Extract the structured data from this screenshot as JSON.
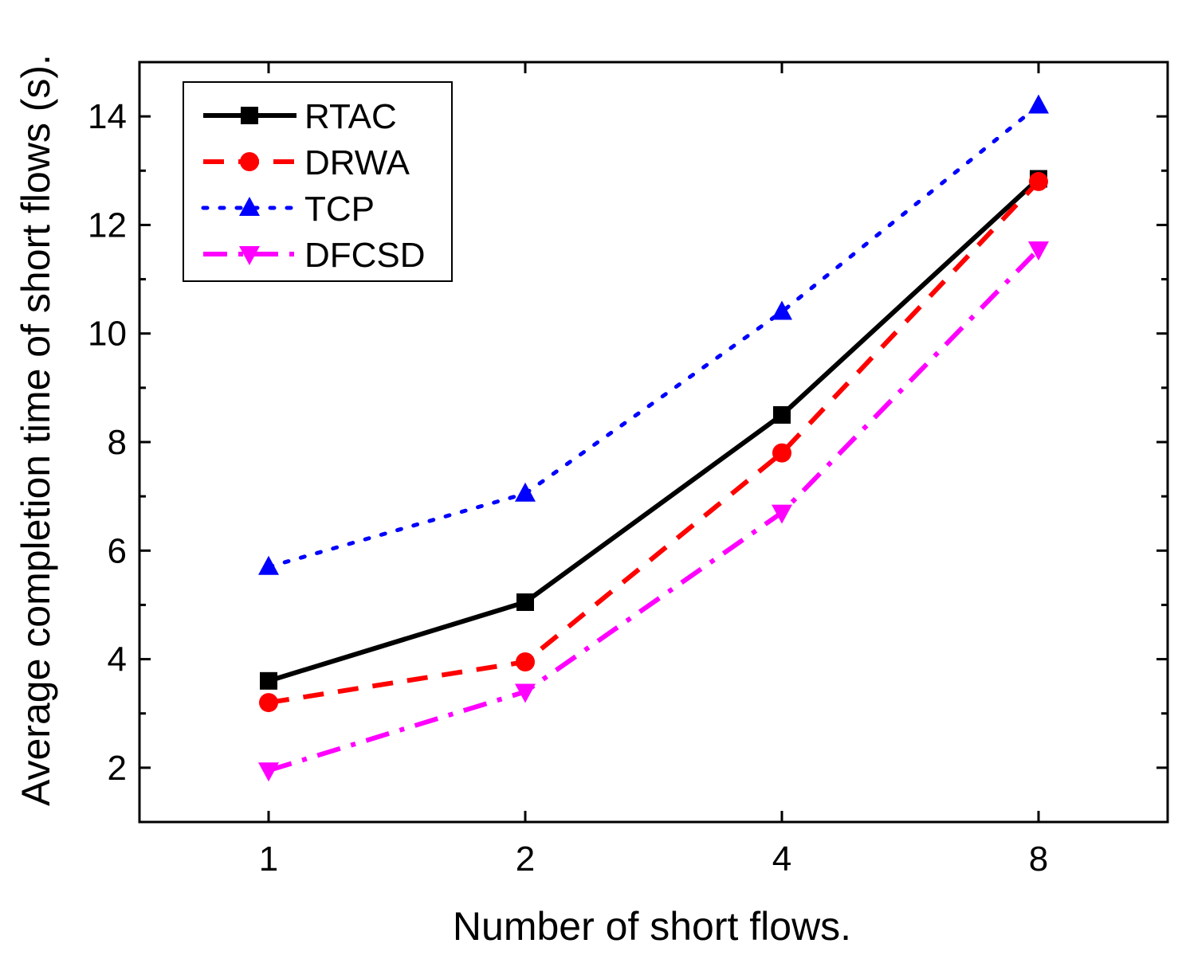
{
  "chart_data": {
    "type": "line",
    "title": "",
    "xlabel": "Number of short flows.",
    "ylabel": "Average completion time of short flows (s).",
    "categories": [
      "1",
      "2",
      "4",
      "8"
    ],
    "ylim": [
      1,
      15
    ],
    "yticks": [
      2,
      4,
      6,
      8,
      10,
      12,
      14
    ],
    "grid": false,
    "legend_position": "top-left",
    "series": [
      {
        "name": "RTAC",
        "values": [
          3.6,
          5.05,
          8.5,
          12.85
        ],
        "color": "#000000",
        "dash": "solid",
        "marker": "square"
      },
      {
        "name": "DRWA",
        "values": [
          3.2,
          3.95,
          7.8,
          12.8
        ],
        "color": "#ff0000",
        "dash": "dash",
        "marker": "circle"
      },
      {
        "name": "TCP",
        "values": [
          5.7,
          7.05,
          10.4,
          14.2
        ],
        "color": "#0000ff",
        "dash": "dot",
        "marker": "triangle-up"
      },
      {
        "name": "DFCSD",
        "values": [
          1.95,
          3.4,
          6.7,
          11.55
        ],
        "color": "#ff00ff",
        "dash": "dashdot",
        "marker": "triangle-down"
      }
    ]
  }
}
